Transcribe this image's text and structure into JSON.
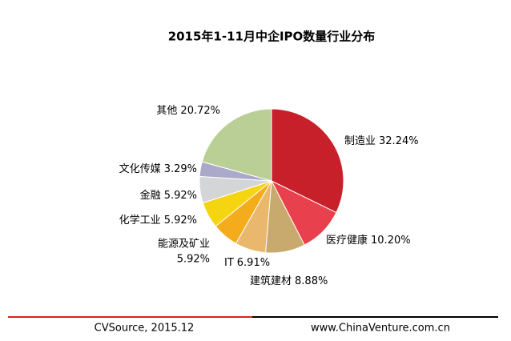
{
  "chart_data": {
    "type": "pie",
    "title": "2015年1-11月中企IPO数量行业分布",
    "categories": [
      "制造业",
      "医疗健康",
      "建筑建材",
      "IT",
      "能源及矿业",
      "化学工业",
      "金融",
      "文化传媒",
      "其他"
    ],
    "values": [
      32.24,
      10.2,
      8.88,
      6.91,
      5.92,
      5.92,
      5.92,
      3.29,
      20.72
    ],
    "value_labels": [
      "32.24%",
      "10.20%",
      "8.88%",
      "6.91%",
      "5.92%",
      "5.92%",
      "5.92%",
      "3.29%",
      "20.72%"
    ],
    "colors": [
      "#c8202a",
      "#e8404c",
      "#c8a96e",
      "#e9b86c",
      "#f4ac1c",
      "#f5d412",
      "#d3d5d6",
      "#aaa9c9",
      "#bacf96"
    ],
    "source": "CVSource, 2015.12",
    "website": "www.ChinaVenture.com.cn"
  }
}
